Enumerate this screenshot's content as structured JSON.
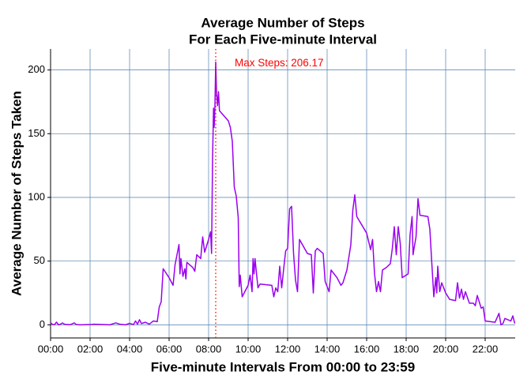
{
  "chart_data": {
    "type": "line",
    "title": [
      "Average Number of Steps",
      "For Each Five-minute Interval"
    ],
    "x_label": "Five-minute Intervals From 00:00 to 23:59",
    "y_label": "Average Number of Steps Taken",
    "annotation": "Max Steps: 206.17",
    "vline": {
      "x": 8.36,
      "color": "#ff0000"
    },
    "color": "#9b00f0",
    "grid": true,
    "xlim": [
      0,
      23.52
    ],
    "ylim": [
      -10.3,
      216.5
    ],
    "xticks": [
      {
        "value": 0,
        "label": "00:00"
      },
      {
        "value": 2,
        "label": "02:00"
      },
      {
        "value": 4,
        "label": "04:00"
      },
      {
        "value": 6,
        "label": "06:00"
      },
      {
        "value": 8,
        "label": "08:00"
      },
      {
        "value": 10,
        "label": "10:00"
      },
      {
        "value": 12,
        "label": "12:00"
      },
      {
        "value": 14,
        "label": "14:00"
      },
      {
        "value": 16,
        "label": "16:00"
      },
      {
        "value": 18,
        "label": "18:00"
      },
      {
        "value": 20,
        "label": "20:00"
      },
      {
        "value": 22,
        "label": "22:00"
      }
    ],
    "yticks": [
      0,
      50,
      100,
      150,
      200
    ],
    "x": [
      0,
      0.1,
      0.2,
      0.3,
      0.4,
      0.5,
      0.6,
      0.7,
      0.8,
      1,
      1.2,
      1.3,
      1.5,
      2,
      2.2,
      2.5,
      3,
      3.3,
      3.5,
      3.8,
      4,
      4.2,
      4.3,
      4.4,
      4.5,
      4.6,
      4.8,
      5,
      5.2,
      5.4,
      5.5,
      5.6,
      5.7,
      6,
      6.2,
      6.3,
      6.5,
      6.55,
      6.6,
      6.7,
      6.8,
      6.85,
      6.9,
      7.2,
      7.3,
      7.4,
      7.6,
      7.7,
      7.8,
      8,
      8.1,
      8.15,
      8.2,
      8.25,
      8.28,
      8.32,
      8.36,
      8.4,
      8.45,
      8.5,
      8.55,
      9,
      9.1,
      9.2,
      9.3,
      9.4,
      9.5,
      9.55,
      9.6,
      9.7,
      10,
      10.1,
      10.2,
      10.25,
      10.3,
      10.35,
      10.4,
      10.5,
      10.6,
      11.2,
      11.3,
      11.4,
      11.5,
      11.6,
      11.7,
      11.8,
      11.9,
      12,
      12.1,
      12.2,
      12.3,
      12.4,
      12.5,
      12.6,
      13,
      13.2,
      13.3,
      13.4,
      13.5,
      13.8,
      13.9,
      14.1,
      14.2,
      14.5,
      14.7,
      14.8,
      15,
      15.2,
      15.3,
      15.4,
      15.5,
      16,
      16.2,
      16.3,
      16.4,
      16.5,
      16.6,
      16.7,
      16.8,
      17,
      17.2,
      17.3,
      17.4,
      17.5,
      17.6,
      17.7,
      17.8,
      18.1,
      18.2,
      18.3,
      18.35,
      18.4,
      18.5,
      18.6,
      18.7,
      19.1,
      19.2,
      19.3,
      19.4,
      19.5,
      19.55,
      19.6,
      19.7,
      19.8,
      20,
      20.2,
      20.5,
      20.6,
      20.7,
      20.8,
      20.9,
      21,
      21.2,
      21.4,
      21.5,
      21.6,
      21.8,
      21.9,
      22,
      22.5,
      22.7,
      22.8,
      22.9,
      23,
      23.3,
      23.4,
      23.5
    ],
    "values": [
      1.7,
      0.3,
      0.1,
      2.1,
      0,
      0.5,
      1.5,
      0.5,
      0.3,
      0.1,
      1.5,
      0.2,
      0,
      0.2,
      0.5,
      0.3,
      0,
      1.5,
      0.5,
      0,
      1.2,
      0.2,
      3,
      0.5,
      4,
      1,
      2,
      0.5,
      3,
      2.5,
      14,
      18,
      44,
      37,
      31,
      47,
      63,
      40,
      52,
      38,
      44,
      36,
      49,
      45,
      42,
      55,
      52,
      69,
      57,
      67,
      73,
      56,
      130,
      170,
      155,
      171,
      206.17,
      182,
      172,
      183,
      168,
      160,
      155,
      144,
      108,
      101,
      84,
      30,
      39,
      22,
      31,
      39,
      26,
      52,
      40,
      52,
      44,
      29,
      32,
      31,
      22,
      29,
      26,
      46,
      29,
      44,
      58,
      60,
      91,
      93,
      56,
      35,
      26,
      67,
      56,
      55,
      25,
      58,
      60,
      56,
      34,
      26,
      43,
      37,
      31,
      33,
      43,
      63,
      90,
      102,
      85,
      72,
      59,
      67,
      40,
      26,
      34,
      26,
      43,
      45,
      48,
      60,
      77,
      55,
      77,
      64,
      37,
      40,
      71,
      85,
      55,
      60,
      69,
      99,
      86,
      85,
      75,
      48,
      22,
      37,
      25,
      46,
      26,
      33,
      25,
      20,
      19,
      33,
      21,
      28,
      20,
      26,
      17,
      17,
      15,
      23,
      13,
      14,
      3,
      2,
      9,
      0,
      1,
      5,
      3,
      7,
      1
    ]
  }
}
